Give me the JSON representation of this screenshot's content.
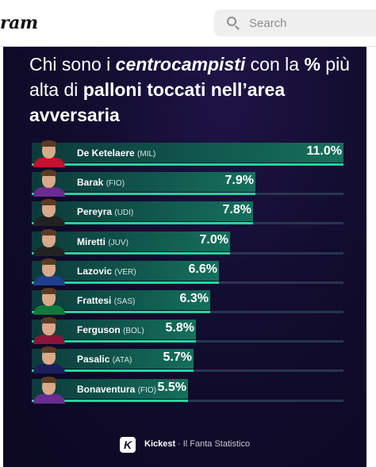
{
  "header": {
    "logo_text": "ram",
    "search_placeholder": "Search"
  },
  "post": {
    "title_parts": [
      {
        "text": "Chi sono i ",
        "style": "normal"
      },
      {
        "text": "centrocampisti",
        "style": "bold-italic"
      },
      {
        "text": " con la ",
        "style": "normal"
      },
      {
        "text": "%",
        "style": "bold"
      },
      {
        "text": " più alta di ",
        "style": "normal"
      },
      {
        "text": "palloni toccati nell’area avversaria",
        "style": "bold"
      }
    ],
    "footer": {
      "badge": "K",
      "brand": "Kickest",
      "tagline": "· Il Fanta Statistico"
    },
    "colors": {
      "background": "#120c2e",
      "bar": "#15705c",
      "accent": "#27d39a"
    }
  },
  "chart_data": {
    "type": "bar",
    "orientation": "horizontal",
    "categories": [
      "De Ketelaere",
      "Barak",
      "Pereyra",
      "Miretti",
      "Lazovic",
      "Frattesi",
      "Ferguson",
      "Pasalic",
      "Bonaventura"
    ],
    "teams": [
      "(MIL)",
      "(FIO)",
      "(UDI)",
      "(JUV)",
      "(VER)",
      "(SAS)",
      "(BOL)",
      "(ATA)",
      "(FIO)"
    ],
    "values": [
      11.0,
      7.9,
      7.8,
      7.0,
      6.6,
      6.3,
      5.8,
      5.7,
      5.5
    ],
    "labels": [
      "11.0%",
      "7.9%",
      "7.8%",
      "7.0%",
      "6.6%",
      "6.3%",
      "5.8%",
      "5.7%",
      "5.5%"
    ],
    "xlim": [
      0,
      11.0
    ],
    "avatar_shirt_colors": [
      "#c8102e",
      "#6a2c91",
      "#222222",
      "#222222",
      "#1f3f8c",
      "#0f7a3c",
      "#8a1538",
      "#1a1f5c",
      "#6a2c91"
    ]
  }
}
